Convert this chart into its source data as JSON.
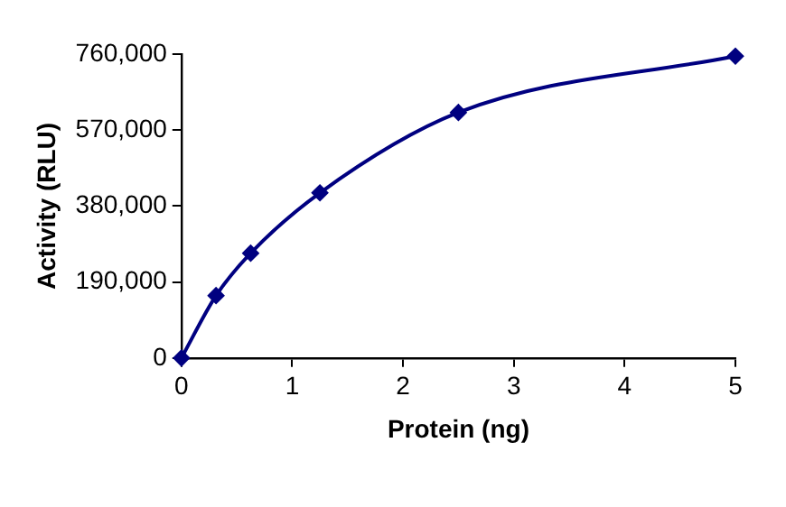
{
  "chart_data": {
    "type": "line",
    "xlabel": "Protein (ng)",
    "ylabel": "Activity (RLU)",
    "x": [
      0,
      0.3125,
      0.625,
      1.25,
      2.5,
      5
    ],
    "series": [
      {
        "color": "#000080",
        "values": [
          0,
          156000,
          262000,
          413000,
          614000,
          755000
        ]
      }
    ],
    "xlim": [
      0,
      5
    ],
    "xticks": [
      0,
      1,
      2,
      3,
      4,
      5
    ],
    "ylim": [
      0,
      760000
    ],
    "yticks": [
      {
        "value": 0,
        "label": "0"
      },
      {
        "value": 190000,
        "label": "190,000"
      },
      {
        "value": 380000,
        "label": "380,000"
      },
      {
        "value": 570000,
        "label": "570,000"
      },
      {
        "value": 760000,
        "label": "760,000"
      }
    ],
    "grid": false,
    "legend": false,
    "marker": "diamond",
    "line_style": "solid"
  }
}
